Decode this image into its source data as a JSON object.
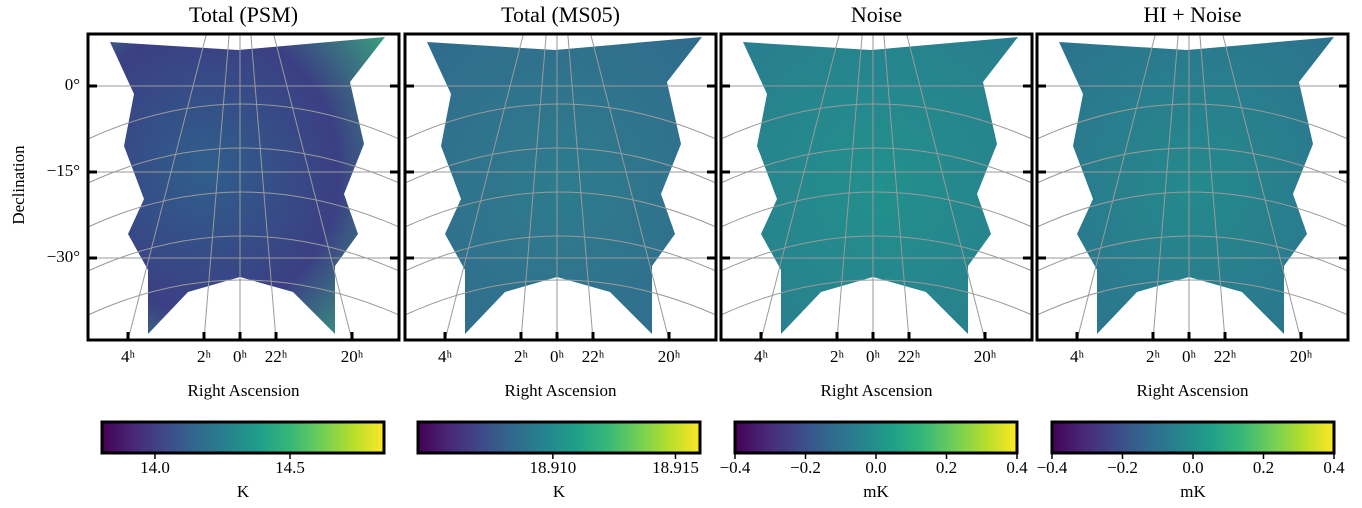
{
  "chart_data": [
    {
      "type": "map",
      "title": "Total (PSM)",
      "xlabel": "Right Ascension",
      "ylabel": "Declination",
      "xticks": [
        {
          "value": 4,
          "label": "4ʰ"
        },
        {
          "value": 2,
          "label": "2ʰ"
        },
        {
          "value": 0,
          "label": "0ʰ"
        },
        {
          "value": 22,
          "label": "22ʰ"
        },
        {
          "value": 20,
          "label": "20ʰ"
        }
      ],
      "yticks": [
        {
          "value": 0,
          "label": "0°"
        },
        {
          "value": -15,
          "label": "−15°"
        },
        {
          "value": -30,
          "label": "−30°"
        }
      ],
      "colormap": "viridis",
      "colorbar": {
        "lim": [
          13.804,
          14.848
        ],
        "ticks": [
          {
            "value": 14,
            "label": "14.0"
          },
          14.5
        ],
        "label": "K"
      }
    },
    {
      "type": "map",
      "title": "Total (MS05)",
      "xlabel": "Right Ascension",
      "xticks": [
        {
          "value": 4,
          "label": "4ʰ"
        },
        {
          "value": 2,
          "label": "2ʰ"
        },
        {
          "value": 0,
          "label": "0ʰ"
        },
        {
          "value": 22,
          "label": "22ʰ"
        },
        {
          "value": 20,
          "label": "20ʰ"
        }
      ],
      "yticks": [
        0,
        -15,
        -30
      ],
      "colormap": "viridis",
      "colorbar": {
        "lim": [
          18.9045,
          18.916
        ],
        "ticks": [
          {
            "value": 18.91,
            "label": "18.910"
          },
          18.915
        ],
        "label": "K"
      }
    },
    {
      "type": "map",
      "title": "Noise",
      "xlabel": "Right Ascension",
      "xticks": [
        {
          "value": 4,
          "label": "4ʰ"
        },
        {
          "value": 2,
          "label": "2ʰ"
        },
        {
          "value": 0,
          "label": "0ʰ"
        },
        {
          "value": 22,
          "label": "22ʰ"
        },
        {
          "value": 20,
          "label": "20ʰ"
        }
      ],
      "yticks": [
        0,
        -15,
        -30
      ],
      "colormap": "viridis",
      "colorbar": {
        "lim": [
          -0.4,
          0.4
        ],
        "ticks": [
          {
            "value": -0.4,
            "label": "−0.4"
          },
          {
            "value": -0.2,
            "label": "−0.2"
          },
          {
            "value": 0,
            "label": "0.0"
          },
          0.2,
          0.4
        ],
        "label": "mK"
      }
    },
    {
      "type": "map",
      "title": "HI + Noise",
      "xlabel": "Right Ascension",
      "xticks": [
        {
          "value": 4,
          "label": "4ʰ"
        },
        {
          "value": 2,
          "label": "2ʰ"
        },
        {
          "value": 0,
          "label": "0ʰ"
        },
        {
          "value": 22,
          "label": "22ʰ"
        },
        {
          "value": 20,
          "label": "20ʰ"
        }
      ],
      "yticks": [
        0,
        -15,
        -30
      ],
      "colormap": "viridis",
      "colorbar": {
        "lim": [
          -0.4,
          0.4
        ],
        "ticks": [
          {
            "value": -0.4,
            "label": "−0.4"
          },
          {
            "value": -0.2,
            "label": "−0.2"
          },
          {
            "value": 0,
            "label": "0.0"
          },
          0.2,
          0.4
        ],
        "label": "mK"
      }
    }
  ]
}
